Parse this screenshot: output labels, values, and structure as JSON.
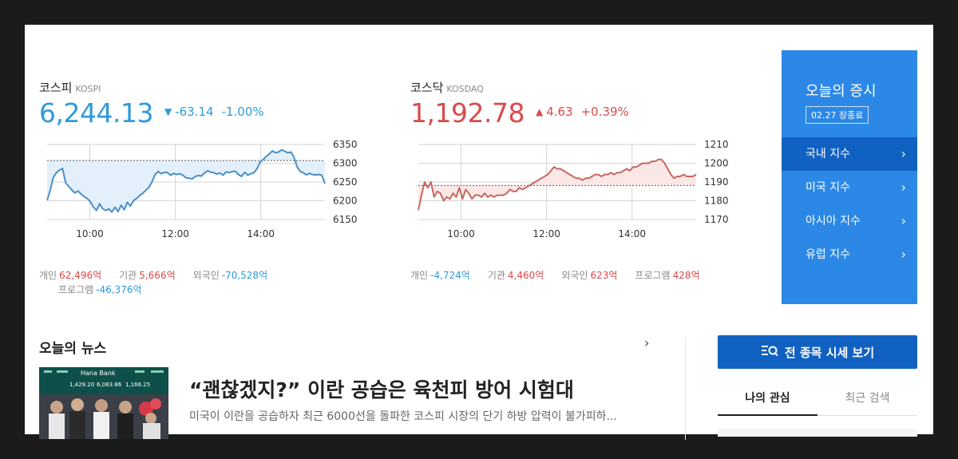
{
  "kospi": {
    "name": "코스피",
    "en": "KOSPI",
    "value": "6,244.13",
    "arrow": "▼",
    "change": "-63.14",
    "percent": "-1.00%",
    "investors": [
      {
        "label": "개인",
        "value": "62,496억",
        "dir": "up"
      },
      {
        "label": "기관",
        "value": "5,666억",
        "dir": "up"
      },
      {
        "label": "외국인",
        "value": "-70,528억",
        "dir": "down"
      },
      {
        "label": "프로그램",
        "value": "-46,376억",
        "dir": "down"
      }
    ]
  },
  "kosdaq": {
    "name": "코스닥",
    "en": "KOSDAQ",
    "value": "1,192.78",
    "arrow": "▲",
    "change": "4.63",
    "percent": "+0.39%",
    "investors": [
      {
        "label": "개인",
        "value": "-4,724억",
        "dir": "down"
      },
      {
        "label": "기관",
        "value": "4,460억",
        "dir": "up"
      },
      {
        "label": "외국인",
        "value": "623억",
        "dir": "up"
      },
      {
        "label": "프로그램",
        "value": "428억",
        "dir": "up"
      }
    ]
  },
  "chart_data": [
    {
      "type": "line",
      "series": [
        {
          "values": [
            6201,
            6228,
            6262,
            6275,
            6282,
            6286,
            6248,
            6238,
            6229,
            6221,
            6226,
            6218,
            6211,
            6206,
            6198,
            6183,
            6174,
            6192,
            6179,
            6174,
            6178,
            6170,
            6183,
            6171,
            6188,
            6176,
            6196,
            6186,
            6201,
            6206,
            6214,
            6220,
            6228,
            6236,
            6251,
            6270,
            6278,
            6272,
            6276,
            6275,
            6268,
            6273,
            6270,
            6272,
            6268,
            6261,
            6260,
            6258,
            6265,
            6267,
            6266,
            6274,
            6280,
            6276,
            6275,
            6271,
            6274,
            6268,
            6277,
            6275,
            6278,
            6278,
            6270,
            6265,
            6276,
            6268,
            6272,
            6275,
            6285,
            6303,
            6310,
            6318,
            6325,
            6333,
            6328,
            6330,
            6336,
            6332,
            6328,
            6330,
            6316,
            6290,
            6278,
            6275,
            6269,
            6273,
            6270,
            6269,
            6270,
            6268,
            6246
          ]
        }
      ],
      "x_ticks": [
        "10:00",
        "12:00",
        "14:00"
      ],
      "y_ticks": [
        6150,
        6200,
        6250,
        6300,
        6350
      ],
      "ylim": [
        6150,
        6350
      ],
      "reference": 6307.27,
      "line_color": "#4a8fc7",
      "fill_color": "#e3effa"
    },
    {
      "type": "line",
      "series": [
        {
          "values": [
            1175,
            1183,
            1190,
            1187,
            1190,
            1182,
            1185,
            1184,
            1180,
            1182,
            1181,
            1184,
            1182,
            1187,
            1181,
            1186,
            1184,
            1181,
            1183,
            1183,
            1182,
            1184,
            1182,
            1183,
            1182,
            1183,
            1183,
            1183,
            1184,
            1186,
            1185,
            1185,
            1187,
            1186,
            1187,
            1188,
            1189,
            1190,
            1191,
            1192,
            1193,
            1194,
            1196,
            1198,
            1197,
            1197,
            1196,
            1195,
            1194,
            1193,
            1192,
            1192,
            1191,
            1192,
            1192,
            1193,
            1194,
            1194,
            1193,
            1194,
            1194,
            1195,
            1194,
            1195,
            1195,
            1196,
            1197,
            1196,
            1198,
            1198,
            1199,
            1200,
            1200,
            1200,
            1201,
            1201,
            1202,
            1202,
            1200,
            1197,
            1194,
            1192,
            1193,
            1193,
            1194,
            1193,
            1193,
            1193,
            1194
          ]
        }
      ],
      "x_ticks": [
        "10:00",
        "12:00",
        "14:00"
      ],
      "y_ticks": [
        1170,
        1180,
        1190,
        1200,
        1210
      ],
      "ylim": [
        1170,
        1210
      ],
      "reference": 1188.15,
      "line_color": "#c8675f",
      "fill_color": "#fbe8e6"
    }
  ],
  "panel": {
    "title": "오늘의 증시",
    "badge": "02.27 장종료",
    "items": [
      "국내 지수",
      "미국 지수",
      "아시아 지수",
      "유럽 지수"
    ]
  },
  "news": {
    "section_title": "오늘의 뉴스",
    "headline": "“괜찮겠지?” 이란 공습은 육천피 방어 시험대",
    "summary": "미국이 이란을 공습하자 최근 6000선을 돌파한 코스피 시장의 단기 하방 압력이 불가피하...",
    "image_sign": "Hana Bank",
    "image_numbers": [
      "1,429.20",
      "6,083.86",
      "1,166.25"
    ]
  },
  "right": {
    "all_button": "전 종목 시세 보기",
    "tabs": [
      "나의 관심",
      "최근 검색"
    ]
  },
  "colors": {
    "up": "#d94a4a",
    "down": "#2f9ad9",
    "panel": "#2c88e6",
    "panel_active": "#1161c2"
  }
}
